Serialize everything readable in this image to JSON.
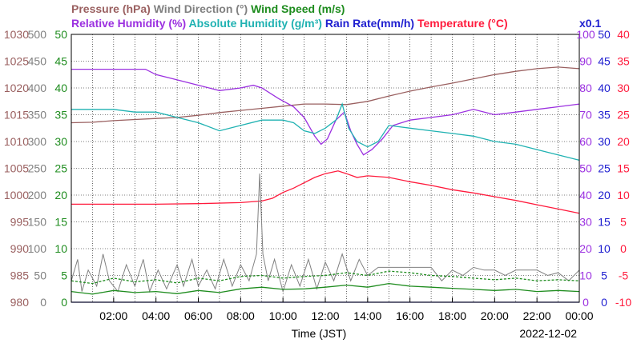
{
  "chart_data": {
    "type": "line",
    "title_row1": [
      {
        "key": "pressure",
        "text": "Pressure (hPa)",
        "color": "#9a6060"
      },
      {
        "key": "wind_dir",
        "text": "Wind Direction (°)",
        "color": "#808080"
      },
      {
        "key": "wind_speed",
        "text": "Wind Speed (m/s)",
        "color": "#1e8c1e"
      }
    ],
    "title_row2": [
      {
        "key": "rh",
        "text": "Relative Humidity (%)",
        "color": "#9b30e0"
      },
      {
        "key": "ah",
        "text": "Absolute Humidity (g/m³)",
        "color": "#20b2b2"
      },
      {
        "key": "rain",
        "text": "Rain Rate(mm/h)",
        "color": "#2020d0"
      },
      {
        "key": "temp",
        "text": "Temperature (°C)",
        "color": "#ff1a3c"
      }
    ],
    "rain_multiplier": "x0.1",
    "xlabel": "Time (JST)",
    "date": "2022-12-02",
    "x_ticks": [
      "02:00",
      "04:00",
      "06:00",
      "08:00",
      "10:00",
      "12:00",
      "14:00",
      "16:00",
      "18:00",
      "20:00",
      "22:00",
      "00:00"
    ],
    "xlim_hours": [
      0,
      24
    ],
    "grid": true,
    "axes": {
      "pressure": {
        "side": "left",
        "ticks": [
          980,
          985,
          990,
          995,
          1000,
          1005,
          1010,
          1015,
          1020,
          1025,
          1030
        ],
        "color": "#9a6060"
      },
      "wind_dir": {
        "side": "left",
        "ticks": [
          0,
          50,
          100,
          150,
          200,
          250,
          300,
          350,
          400,
          450,
          500
        ],
        "color": "#808080"
      },
      "wind_speed": {
        "side": "left",
        "ticks": [
          0,
          5,
          10,
          15,
          20,
          25,
          30,
          35,
          40,
          45,
          50
        ],
        "color": "#1e8c1e"
      },
      "rh": {
        "side": "right",
        "ticks": [
          0,
          10,
          20,
          30,
          40,
          50,
          60,
          70,
          80,
          90,
          100
        ],
        "color": "#9b30e0"
      },
      "rain": {
        "side": "right",
        "ticks": [
          0,
          5,
          10,
          15,
          20,
          25,
          30,
          35,
          40,
          45,
          50
        ],
        "color": "#2020d0"
      },
      "temp": {
        "side": "right",
        "ticks": [
          -10,
          -5,
          0,
          5,
          10,
          15,
          20,
          25,
          30,
          35,
          40
        ],
        "color": "#ff1a3c"
      }
    },
    "series": [
      {
        "name": "Pressure (hPa)",
        "key": "pressure",
        "color": "#9a6060",
        "axis": "pressure",
        "points": [
          [
            0,
            1013.5
          ],
          [
            1,
            1013.6
          ],
          [
            2,
            1013.9
          ],
          [
            3,
            1014.1
          ],
          [
            4,
            1014.3
          ],
          [
            5,
            1014.5
          ],
          [
            6,
            1014.9
          ],
          [
            7,
            1015.4
          ],
          [
            8,
            1015.8
          ],
          [
            9,
            1016.2
          ],
          [
            10,
            1016.6
          ],
          [
            11,
            1017.0
          ],
          [
            12,
            1017.0
          ],
          [
            13,
            1016.9
          ],
          [
            14,
            1017.5
          ],
          [
            15,
            1018.5
          ],
          [
            16,
            1019.4
          ],
          [
            17,
            1020.2
          ],
          [
            18,
            1020.9
          ],
          [
            19,
            1021.7
          ],
          [
            20,
            1022.5
          ],
          [
            21,
            1023.1
          ],
          [
            22,
            1023.6
          ],
          [
            23,
            1023.9
          ],
          [
            24,
            1023.6
          ]
        ]
      },
      {
        "name": "Relative Humidity (%)",
        "key": "rh",
        "color": "#9b30e0",
        "axis": "rh",
        "points": [
          [
            0,
            87
          ],
          [
            1,
            87
          ],
          [
            2,
            87
          ],
          [
            3,
            87
          ],
          [
            3.5,
            87
          ],
          [
            4,
            85
          ],
          [
            5,
            83
          ],
          [
            6,
            81
          ],
          [
            7,
            79
          ],
          [
            8,
            80
          ],
          [
            8.6,
            81
          ],
          [
            9,
            80
          ],
          [
            9.8,
            76
          ],
          [
            10.5,
            73
          ],
          [
            11,
            69
          ],
          [
            11.5,
            62
          ],
          [
            11.8,
            59
          ],
          [
            12.1,
            61
          ],
          [
            12.5,
            68
          ],
          [
            12.9,
            71
          ],
          [
            13.2,
            64
          ],
          [
            13.5,
            59
          ],
          [
            13.8,
            55
          ],
          [
            14.2,
            57
          ],
          [
            14.7,
            61
          ],
          [
            15.2,
            66
          ],
          [
            16,
            68
          ],
          [
            17,
            69
          ],
          [
            18,
            70
          ],
          [
            19,
            72
          ],
          [
            20,
            70
          ],
          [
            21,
            71
          ],
          [
            22,
            72
          ],
          [
            23,
            73
          ],
          [
            24,
            74
          ]
        ]
      },
      {
        "name": "Absolute Humidity (g/m³)",
        "key": "ah",
        "color": "#20b2b2",
        "axis": "ah",
        "points": [
          [
            0,
            72
          ],
          [
            1,
            72
          ],
          [
            2,
            72
          ],
          [
            3,
            71
          ],
          [
            4,
            71
          ],
          [
            5,
            69
          ],
          [
            6,
            67
          ],
          [
            7,
            64
          ],
          [
            8,
            66
          ],
          [
            9,
            68
          ],
          [
            10,
            68
          ],
          [
            10.5,
            67
          ],
          [
            11,
            64
          ],
          [
            11.5,
            63
          ],
          [
            12,
            65
          ],
          [
            12.5,
            68
          ],
          [
            12.8,
            74
          ],
          [
            13.1,
            65
          ],
          [
            13.5,
            60
          ],
          [
            14,
            58
          ],
          [
            14.5,
            60
          ],
          [
            15,
            66
          ],
          [
            16,
            65
          ],
          [
            17,
            64
          ],
          [
            18,
            63
          ],
          [
            19,
            62
          ],
          [
            20,
            60
          ],
          [
            21,
            59
          ],
          [
            22,
            57
          ],
          [
            23,
            55
          ],
          [
            24,
            53
          ]
        ]
      },
      {
        "name": "Temperature (°C)",
        "key": "temp",
        "color": "#ff1a3c",
        "axis": "temp",
        "points": [
          [
            0,
            8.3
          ],
          [
            2,
            8.3
          ],
          [
            4,
            8.3
          ],
          [
            6,
            8.4
          ],
          [
            8,
            8.6
          ],
          [
            9,
            8.9
          ],
          [
            9.5,
            9.4
          ],
          [
            10,
            10.5
          ],
          [
            10.5,
            11.3
          ],
          [
            11,
            12.3
          ],
          [
            11.5,
            13.3
          ],
          [
            12,
            14.0
          ],
          [
            12.6,
            14.5
          ],
          [
            13,
            14.0
          ],
          [
            13.5,
            13.3
          ],
          [
            14,
            13.6
          ],
          [
            15,
            13.3
          ],
          [
            16,
            12.5
          ],
          [
            17,
            11.8
          ],
          [
            18,
            11.0
          ],
          [
            19,
            10.4
          ],
          [
            20,
            9.7
          ],
          [
            21,
            9.0
          ],
          [
            22,
            8.2
          ],
          [
            23,
            7.4
          ],
          [
            24,
            6.6
          ]
        ]
      },
      {
        "name": "Wind Direction (°)",
        "key": "wind_dir",
        "color": "#808080",
        "axis": "wind_dir",
        "points": [
          [
            0,
            40
          ],
          [
            0.3,
            80
          ],
          [
            0.5,
            20
          ],
          [
            0.8,
            60
          ],
          [
            1.2,
            30
          ],
          [
            1.5,
            90
          ],
          [
            1.8,
            40
          ],
          [
            2.2,
            20
          ],
          [
            2.6,
            70
          ],
          [
            3,
            30
          ],
          [
            3.4,
            80
          ],
          [
            3.7,
            20
          ],
          [
            4.1,
            60
          ],
          [
            4.5,
            25
          ],
          [
            5,
            70
          ],
          [
            5.3,
            30
          ],
          [
            5.7,
            80
          ],
          [
            6,
            30
          ],
          [
            6.4,
            60
          ],
          [
            6.8,
            25
          ],
          [
            7.2,
            80
          ],
          [
            7.6,
            30
          ],
          [
            8,
            70
          ],
          [
            8.4,
            40
          ],
          [
            8.75,
            90
          ],
          [
            8.9,
            240
          ],
          [
            9.05,
            90
          ],
          [
            9.3,
            40
          ],
          [
            9.6,
            80
          ],
          [
            10,
            20
          ],
          [
            10.4,
            70
          ],
          [
            10.8,
            30
          ],
          [
            11.2,
            80
          ],
          [
            11.6,
            25
          ],
          [
            12,
            75
          ],
          [
            12.4,
            40
          ],
          [
            12.8,
            90
          ],
          [
            13.2,
            40
          ],
          [
            13.6,
            80
          ],
          [
            14,
            50
          ],
          [
            14.5,
            65
          ],
          [
            15,
            65
          ],
          [
            16,
            65
          ],
          [
            17,
            65
          ],
          [
            17.5,
            40
          ],
          [
            18,
            60
          ],
          [
            18.5,
            50
          ],
          [
            19,
            65
          ],
          [
            19.5,
            60
          ],
          [
            20,
            60
          ],
          [
            20.5,
            50
          ],
          [
            21,
            60
          ],
          [
            21.5,
            60
          ],
          [
            22,
            60
          ],
          [
            22.5,
            50
          ],
          [
            23,
            55
          ],
          [
            23.5,
            40
          ],
          [
            24,
            60
          ]
        ]
      },
      {
        "name": "Wind Speed (m/s)",
        "key": "wind_speed",
        "color": "#1e8c1e",
        "axis": "wind_speed",
        "points": [
          [
            0,
            2
          ],
          [
            1,
            1.5
          ],
          [
            2,
            2.2
          ],
          [
            3,
            1.8
          ],
          [
            4,
            2
          ],
          [
            5,
            1.6
          ],
          [
            6,
            2.2
          ],
          [
            7,
            1.8
          ],
          [
            8,
            2.5
          ],
          [
            9,
            2.8
          ],
          [
            10,
            2.4
          ],
          [
            11,
            2.5
          ],
          [
            12,
            2.8
          ],
          [
            13,
            3.2
          ],
          [
            14,
            2.8
          ],
          [
            15,
            3.5
          ],
          [
            16,
            3
          ],
          [
            17,
            2.8
          ],
          [
            18,
            2.6
          ],
          [
            19,
            2.4
          ],
          [
            20,
            2.2
          ],
          [
            21,
            2.4
          ],
          [
            22,
            2
          ],
          [
            23,
            2.2
          ],
          [
            24,
            2
          ]
        ]
      },
      {
        "name": "Wind Speed gust",
        "key": "wind_gust",
        "color": "#1e8c1e",
        "axis": "wind_speed",
        "points": [
          [
            0,
            4
          ],
          [
            1,
            3.5
          ],
          [
            2,
            4.5
          ],
          [
            3,
            3.8
          ],
          [
            4,
            4.2
          ],
          [
            5,
            3.6
          ],
          [
            6,
            4.5
          ],
          [
            7,
            4
          ],
          [
            8,
            4.8
          ],
          [
            9,
            5
          ],
          [
            10,
            4.5
          ],
          [
            11,
            4.8
          ],
          [
            12,
            5
          ],
          [
            13,
            5.5
          ],
          [
            14,
            5
          ],
          [
            15,
            5.8
          ],
          [
            16,
            5.5
          ],
          [
            17,
            5
          ],
          [
            18,
            4.8
          ],
          [
            19,
            4.5
          ],
          [
            20,
            4.2
          ],
          [
            21,
            4.5
          ],
          [
            22,
            4
          ],
          [
            23,
            4.2
          ],
          [
            24,
            4
          ]
        ]
      },
      {
        "name": "Rain Rate(mm/h)",
        "key": "rain",
        "color": "#2020d0",
        "axis": "rain",
        "points": [
          [
            0,
            0
          ],
          [
            24,
            0
          ]
        ]
      }
    ]
  }
}
